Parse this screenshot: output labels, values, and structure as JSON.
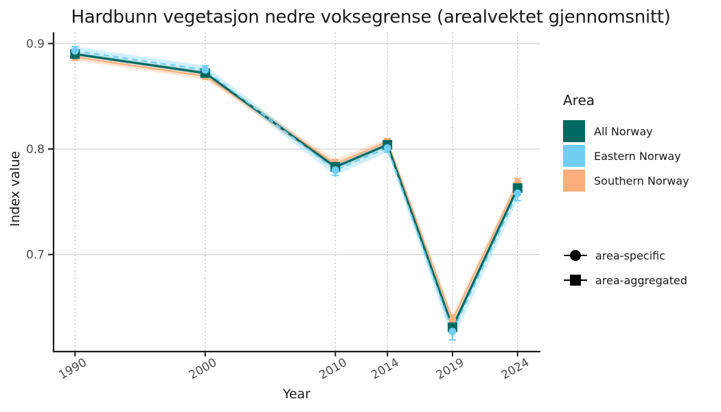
{
  "chart_data": {
    "type": "line",
    "title": "Hardbunn vegetasjon nedre voksegrense (arealvektet gjennomsnitt)",
    "xlabel": "Year",
    "ylabel": "Index value",
    "x_ticks": [
      1990,
      2000,
      2010,
      2014,
      2019,
      2024
    ],
    "y_ticks": [
      0.7,
      0.8,
      0.9
    ],
    "xlim": [
      1988.3,
      2025.7
    ],
    "ylim": [
      0.608,
      0.91
    ],
    "grid": {
      "horizontal": "solid",
      "vertical": "dotted"
    },
    "series": [
      {
        "name": "Eastern Norway",
        "color": "#70CDF4",
        "marker": "circle",
        "shape_class": "area-specific",
        "line_style": "dashed",
        "x": [
          1990,
          2000,
          2010,
          2014,
          2019,
          2024
        ],
        "values": [
          0.893,
          0.875,
          0.78,
          0.801,
          0.627,
          0.758
        ],
        "errors": [
          0.004,
          0.004,
          0.005,
          0.004,
          0.008,
          0.007
        ]
      },
      {
        "name": "Southern Norway",
        "color": "#FBAE7C",
        "marker": "circle",
        "shape_class": "area-specific",
        "line_style": "solid",
        "x": [
          1990,
          2000,
          2010,
          2014,
          2019,
          2024
        ],
        "values": [
          0.887,
          0.869,
          0.786,
          0.807,
          0.638,
          0.768
        ],
        "errors": [
          0.003,
          0.003,
          0.004,
          0.003,
          0.005,
          0.004
        ]
      },
      {
        "name": "All Norway",
        "color": "#006A62",
        "marker": "square",
        "shape_class": "area-aggregated",
        "line_style": "solid",
        "x": [
          1990,
          2000,
          2010,
          2014,
          2019,
          2024
        ],
        "values": [
          0.89,
          0.872,
          0.783,
          0.804,
          0.631,
          0.763
        ],
        "errors": [
          0.002,
          0.002,
          0.003,
          0.002,
          0.004,
          0.003
        ]
      }
    ],
    "legend": {
      "area_title": "Area",
      "areas": [
        {
          "label": "All Norway",
          "color": "#006A62"
        },
        {
          "label": "Eastern Norway",
          "color": "#70CDF4"
        },
        {
          "label": "Southern Norway",
          "color": "#FBAE7C"
        }
      ],
      "shapes": [
        {
          "label": "area-specific",
          "marker": "circle"
        },
        {
          "label": "area-aggregated",
          "marker": "square"
        }
      ]
    },
    "colors": {
      "axis": "#1A1A1A",
      "grid_major": "#D9D9D9",
      "grid_dotted": "#AFAFAF",
      "tick_label": "#4D4D4D",
      "text": "#1A1A1A",
      "shape_key": "#000000"
    }
  }
}
